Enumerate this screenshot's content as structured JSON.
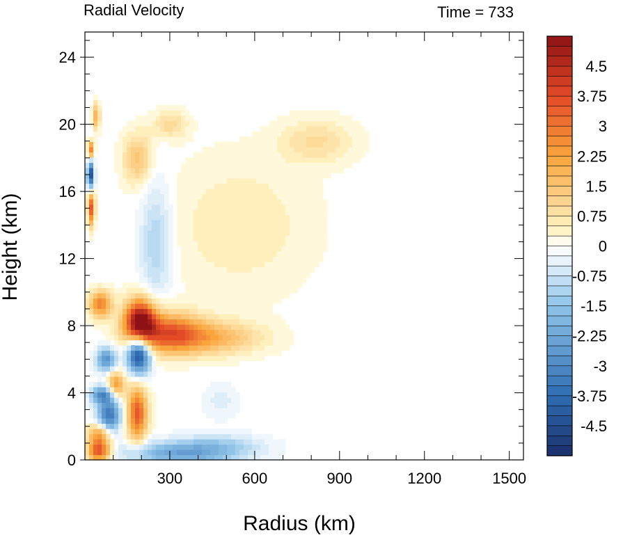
{
  "chart_data": {
    "type": "heatmap",
    "title": "Radial Velocity",
    "subtitle": "Time = 733",
    "xlabel": "Radius (km)",
    "ylabel": "Height (km)",
    "xlim": [
      0,
      1550
    ],
    "ylim": [
      0,
      25.5
    ],
    "xticks": [
      300,
      600,
      900,
      1200,
      1500
    ],
    "xtick_labels": [
      "300",
      "600",
      "900",
      "1200",
      "1500"
    ],
    "yticks": [
      0,
      4,
      8,
      12,
      16,
      20,
      24
    ],
    "ytick_labels": [
      "0",
      "4",
      "8",
      "12",
      "16",
      "20",
      "24"
    ],
    "colorbar": {
      "min": -5.25,
      "max": 5.25,
      "step": 0.25,
      "tick_values": [
        4.5,
        3.75,
        3,
        2.25,
        1.5,
        0.75,
        0,
        -0.75,
        -1.5,
        -2.25,
        -3,
        -3.75,
        -4.5
      ],
      "tick_labels": [
        "4.5",
        "3.75",
        "3",
        "2.25",
        "1.5",
        "0.75",
        "0",
        "-0.75",
        "-1.5",
        "-2.25",
        "-3",
        "-3.75",
        "-4.5"
      ],
      "colors": {
        "negative_extreme": "#1a2f6b",
        "negative_strong": "#2f6db3",
        "negative_mid": "#8fc4e8",
        "negative_weak": "#e6f2fb",
        "neutral": "#ffffff",
        "positive_weak": "#fff3c4",
        "positive_mid": "#f9a53c",
        "positive_strong": "#e34a26",
        "positive_extreme": "#8e1215"
      }
    },
    "features": [
      {
        "r": 195,
        "z": 8.3,
        "dr": 55,
        "dz": 1.3,
        "v": 5.0
      },
      {
        "r": 290,
        "z": 7.6,
        "dr": 120,
        "dz": 1.2,
        "v": 3.0
      },
      {
        "r": 440,
        "z": 7.3,
        "dr": 180,
        "dz": 1.0,
        "v": 1.8
      },
      {
        "r": 190,
        "z": 6.3,
        "dr": 40,
        "dz": 1.1,
        "v": -5.0
      },
      {
        "r": 75,
        "z": 6.0,
        "dr": 35,
        "dz": 0.7,
        "v": -2.8
      },
      {
        "r": 55,
        "z": 9.3,
        "dr": 40,
        "dz": 0.8,
        "v": 2.8
      },
      {
        "r": 20,
        "z": 17.0,
        "dr": 12,
        "dz": 0.8,
        "v": -4.5
      },
      {
        "r": 22,
        "z": 15.0,
        "dr": 12,
        "dz": 1.0,
        "v": 3.5
      },
      {
        "r": 20,
        "z": 18.5,
        "dr": 10,
        "dz": 0.5,
        "v": 3.0
      },
      {
        "r": 40,
        "z": 20.5,
        "dr": 12,
        "dz": 0.8,
        "v": 2.0
      },
      {
        "r": 185,
        "z": 2.8,
        "dr": 35,
        "dz": 1.6,
        "v": 3.5
      },
      {
        "r": 85,
        "z": 2.7,
        "dr": 40,
        "dz": 1.0,
        "v": -3.5
      },
      {
        "r": 60,
        "z": 3.9,
        "dr": 40,
        "dz": 0.5,
        "v": -2.8
      },
      {
        "r": 110,
        "z": 4.5,
        "dr": 30,
        "dz": 0.8,
        "v": 2.5
      },
      {
        "r": 50,
        "z": 1.5,
        "dr": 40,
        "dz": 0.7,
        "v": 2.5
      },
      {
        "r": 50,
        "z": 0.5,
        "dr": 40,
        "dz": 0.6,
        "v": 3.5
      },
      {
        "r": 350,
        "z": 0.4,
        "dr": 200,
        "dz": 0.7,
        "v": -2.3
      },
      {
        "r": 480,
        "z": 1.0,
        "dr": 150,
        "dz": 0.6,
        "v": -0.8
      },
      {
        "r": 250,
        "z": 13.0,
        "dr": 55,
        "dz": 3.5,
        "v": -1.2
      },
      {
        "r": 185,
        "z": 18.0,
        "dr": 50,
        "dz": 1.5,
        "v": 1.5
      },
      {
        "r": 550,
        "z": 14.0,
        "dr": 250,
        "dz": 4.0,
        "v": 0.6
      },
      {
        "r": 820,
        "z": 19.0,
        "dr": 130,
        "dz": 1.3,
        "v": 0.9
      },
      {
        "r": 300,
        "z": 20.0,
        "dr": 60,
        "dz": 0.8,
        "v": 1.0
      },
      {
        "r": 480,
        "z": 3.5,
        "dr": 60,
        "dz": 1.0,
        "v": -0.5
      }
    ]
  }
}
